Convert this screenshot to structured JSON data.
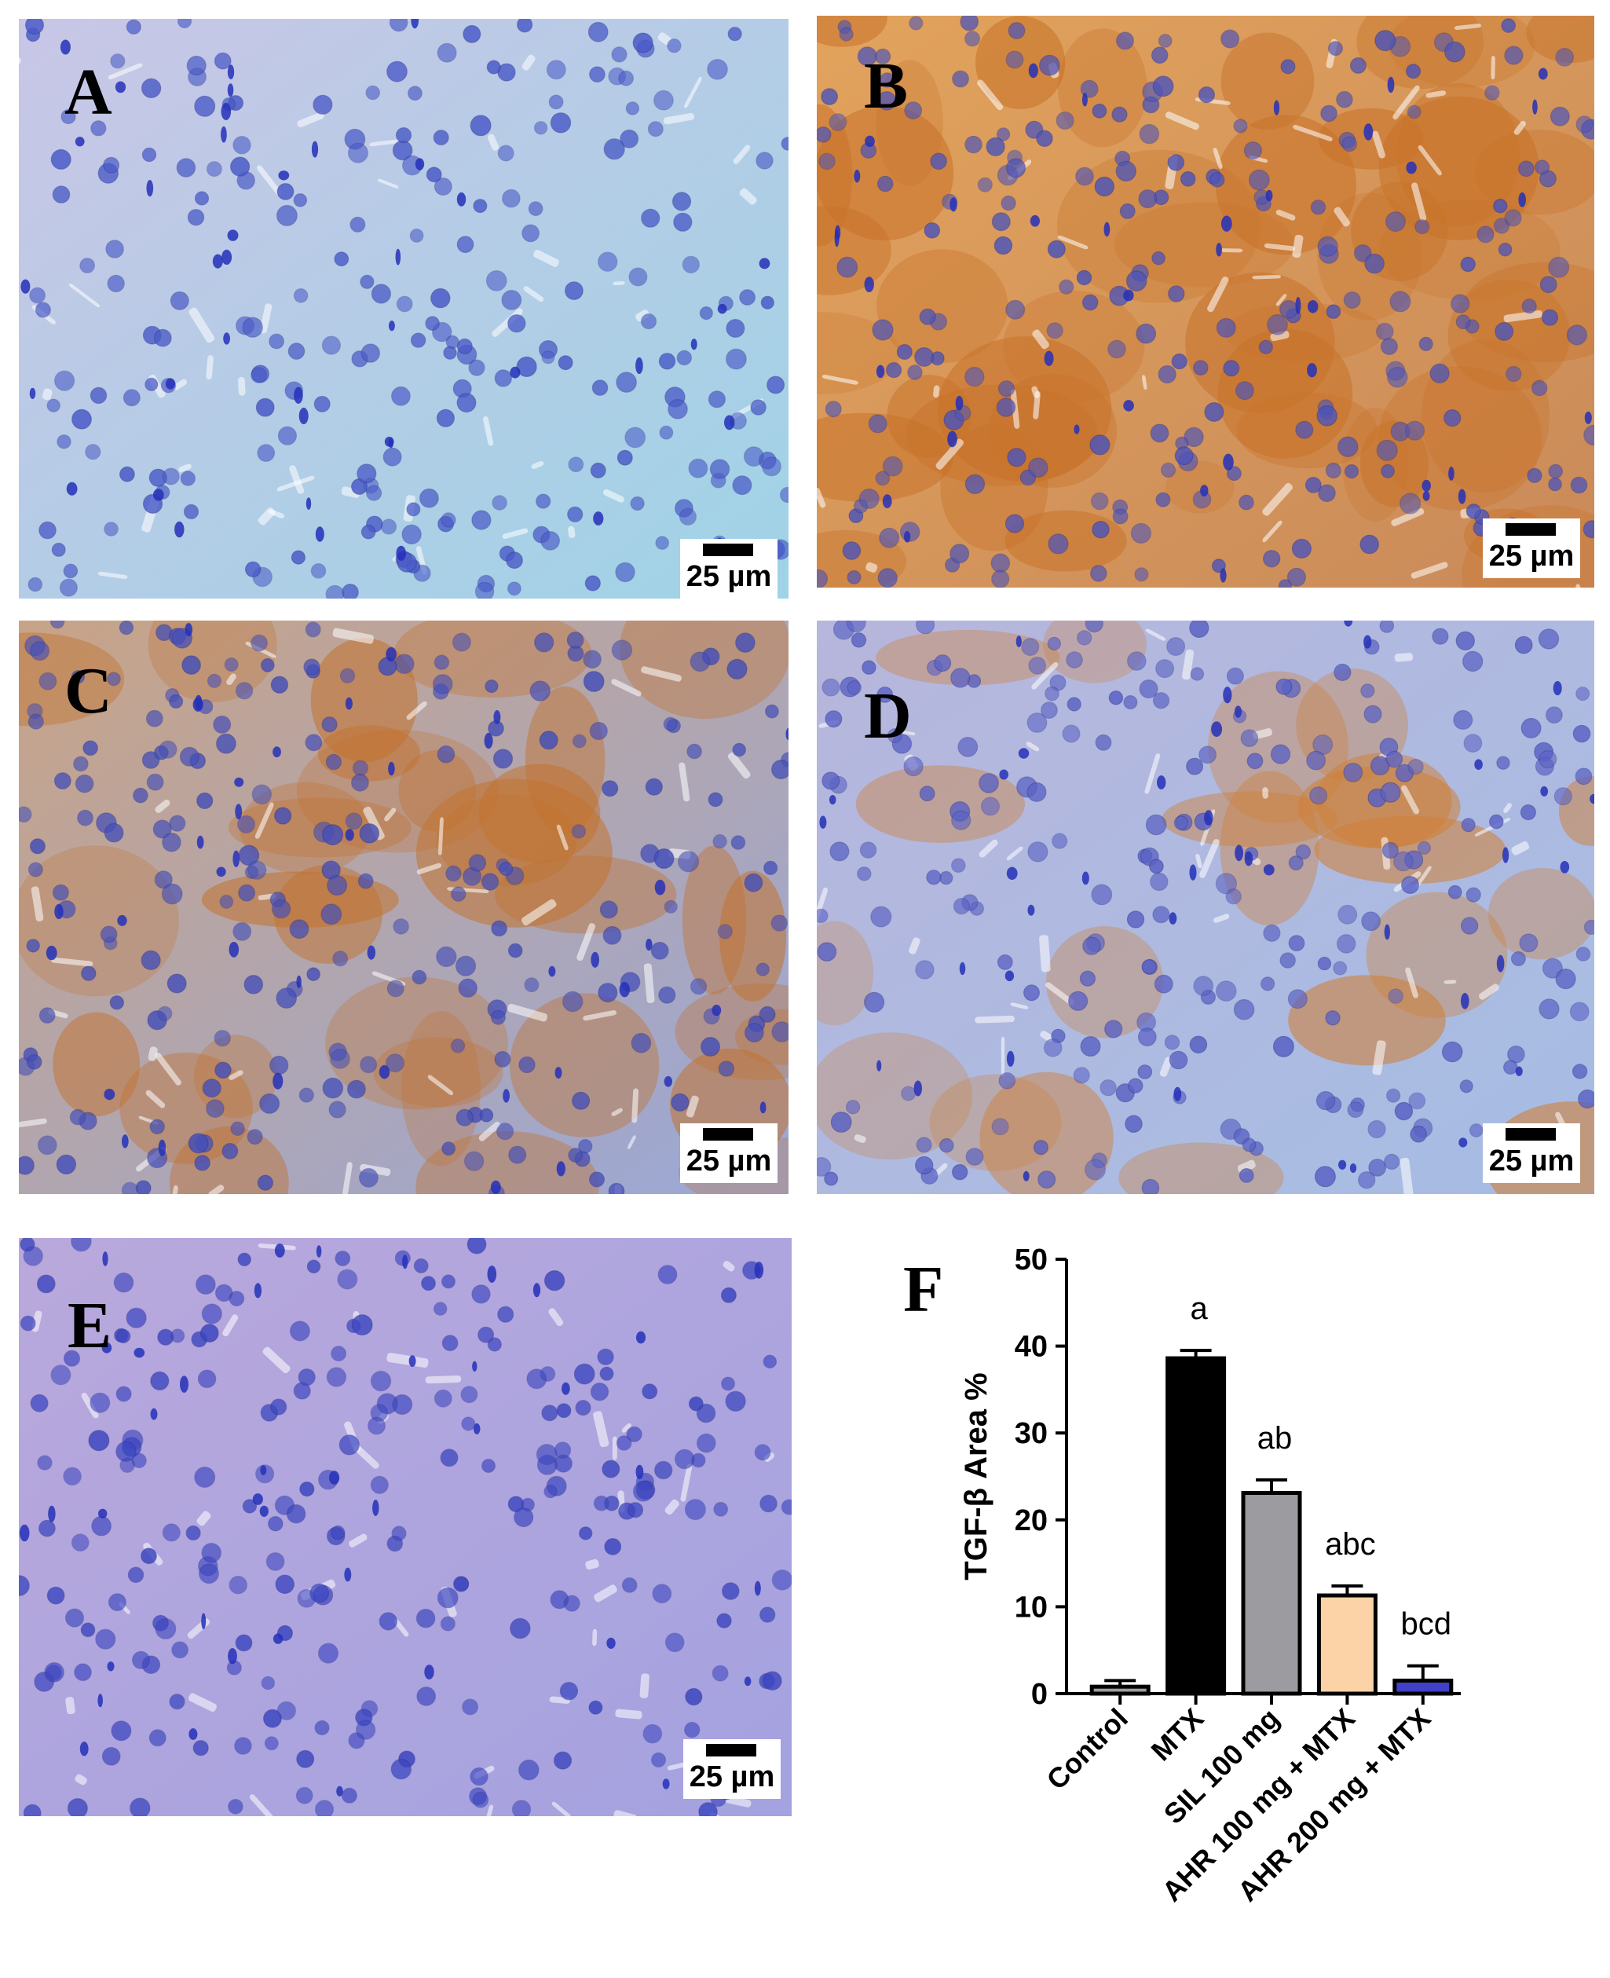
{
  "panels": [
    {
      "id": "A",
      "letter": "A",
      "scale_label": "25 µm",
      "stain": "negative-blue"
    },
    {
      "id": "B",
      "letter": "B",
      "scale_label": "25 µm",
      "stain": "strong-brown"
    },
    {
      "id": "C",
      "letter": "C",
      "scale_label": "25 µm",
      "stain": "moderate-brown"
    },
    {
      "id": "D",
      "letter": "D",
      "scale_label": "25 µm",
      "stain": "patchy-brown"
    },
    {
      "id": "E",
      "letter": "E",
      "scale_label": "25 µm",
      "stain": "negative-purple"
    }
  ],
  "chart_panel_letter": "F",
  "chart_data": {
    "type": "bar",
    "categories": [
      "Control",
      "MTX",
      "SIL 100 mg",
      "AHR 100 mg + MTX",
      "AHR 200 mg + MTX"
    ],
    "values": [
      0.8,
      38.6,
      23.1,
      11.3,
      1.5
    ],
    "errors": [
      0.7,
      0.9,
      1.5,
      1.1,
      1.7
    ],
    "significance": [
      "",
      "a",
      "ab",
      "abc",
      "bcd"
    ],
    "bar_colors": [
      "#9e9e9e",
      "#000000",
      "#9b9ba0",
      "#fbd3a6",
      "#4040c8"
    ],
    "ylabel": "TGF-β Area %",
    "xlabel": "",
    "ylim": [
      0,
      50
    ],
    "yticks": [
      0,
      10,
      20,
      30,
      40,
      50
    ],
    "grid": false
  }
}
